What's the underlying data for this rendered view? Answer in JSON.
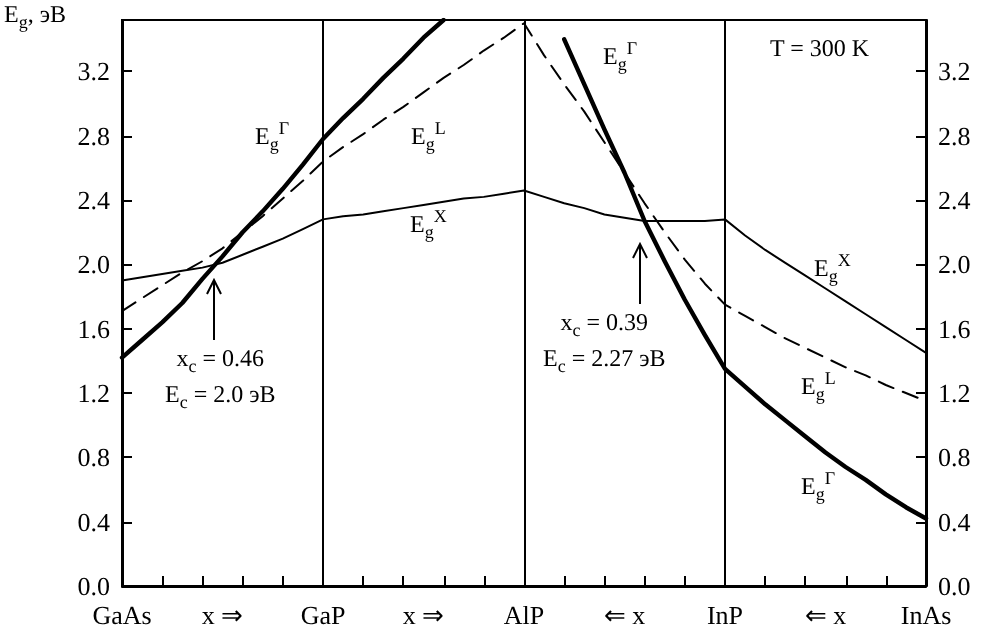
{
  "chart_data": {
    "type": "line",
    "ylabel": "E$_{g}$, эВ",
    "categories": [
      "GaAs",
      null,
      null,
      null,
      null,
      "x ⇒",
      null,
      null,
      null,
      null,
      "GaP",
      null,
      null,
      null,
      null,
      "x ⇒",
      null,
      null,
      null,
      null,
      "AlP",
      null,
      null,
      null,
      null,
      "⇐ x",
      null,
      null,
      null,
      null,
      "InP",
      null,
      null,
      null,
      null,
      "⇐ x",
      null,
      null,
      null,
      null,
      "InAs"
    ],
    "ylim": [
      0,
      3.52
    ],
    "yticks": [
      {
        "value": 0,
        "label": "0.0"
      },
      0.4,
      0.8,
      1.2,
      1.6,
      {
        "value": 2,
        "label": "2.0"
      },
      2.4,
      2.8,
      3.2
    ],
    "y2lim": [
      0,
      3.52
    ],
    "y2ticks": [
      {
        "value": 0,
        "label": "0.0"
      },
      0.4,
      0.8,
      1.2,
      1.6,
      {
        "value": 2,
        "label": "2.0"
      },
      2.4,
      2.8,
      3.2
    ],
    "grid": false,
    "marker": "none",
    "series": [
      {
        "color": "#000000",
        "line_style": "solid",
        "values": [
          1.42,
          1.53,
          1.64,
          1.76,
          1.91,
          2.05,
          2.2,
          2.33,
          2.47,
          2.62,
          2.78,
          2.91,
          3.03,
          3.16,
          3.28,
          3.41,
          3.52,
          null,
          null,
          null,
          null,
          null,
          3.4,
          3.12,
          2.84,
          2.57,
          2.27,
          2.02,
          1.78,
          1.56,
          1.35,
          1.24,
          1.13,
          1.03,
          0.93,
          0.83,
          0.74,
          0.66,
          0.57,
          0.49,
          0.42
        ]
      },
      {
        "color": "#000000",
        "line_style": "dashed",
        "values": [
          1.71,
          1.79,
          1.87,
          1.95,
          2.02,
          2.1,
          2.2,
          2.3,
          2.41,
          2.52,
          2.64,
          2.73,
          2.81,
          2.9,
          2.98,
          3.07,
          3.16,
          3.24,
          3.33,
          3.41,
          3.5,
          3.3,
          3.12,
          2.95,
          2.76,
          2.57,
          2.38,
          2.2,
          2.03,
          1.88,
          1.75,
          1.68,
          1.61,
          1.54,
          1.48,
          1.42,
          1.36,
          1.31,
          1.25,
          1.2,
          1.15
        ]
      },
      {
        "color": "#000000",
        "line_style": "solid",
        "values": [
          1.9,
          1.92,
          1.94,
          1.96,
          1.98,
          2.01,
          2.06,
          2.11,
          2.16,
          2.22,
          2.28,
          2.3,
          2.31,
          2.33,
          2.35,
          2.37,
          2.39,
          2.41,
          2.42,
          2.44,
          2.46,
          2.42,
          2.38,
          2.35,
          2.31,
          2.29,
          2.27,
          2.27,
          2.27,
          2.27,
          2.28,
          2.18,
          2.09,
          2.01,
          1.93,
          1.85,
          1.77,
          1.69,
          1.61,
          1.53,
          1.45
        ]
      }
    ],
    "ref_lines": [
      {
        "axis": "x",
        "value": "GaP"
      },
      {
        "axis": "x",
        "value": "AlP"
      },
      {
        "axis": "x",
        "value": "InP"
      }
    ],
    "annotations": [
      "E$_{g}$$^{Γ}$",
      "E$_{g}$$^{L}$",
      "E$_{g}$$^{X}$",
      "E$_{g}$$^{Γ}$",
      "T = 300 K",
      "E$_{g}$$^{X}$",
      "E$_{g}$$^{L}$",
      "E$_{g}$$^{Γ}$",
      "x$_{c}$ = 0.46\nE$_{c}$ = 2.0 эВ",
      "x$_{c}$ = 0.39\nE$_{c}$ = 2.27 эВ"
    ]
  }
}
